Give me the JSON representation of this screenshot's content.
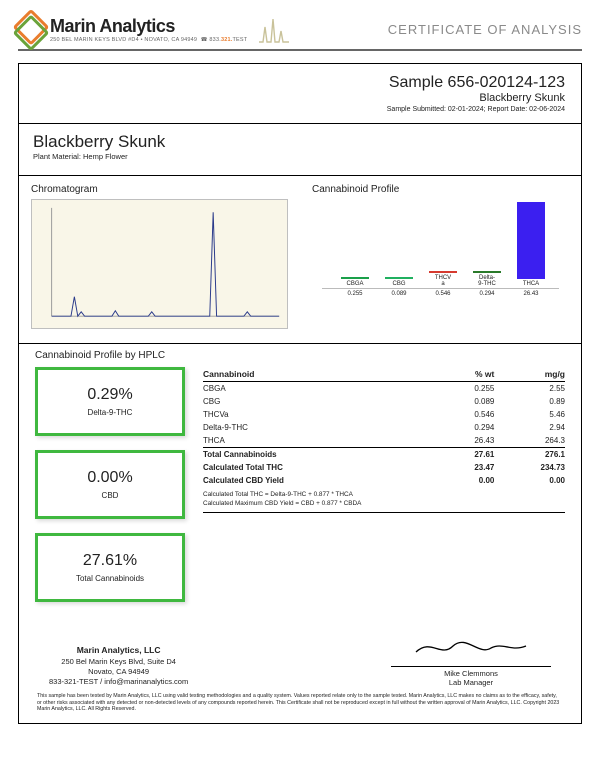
{
  "header": {
    "company": "Marin Analytics",
    "address_line": "250 BEL MARIN KEYS BLVD #D4 • NOVATO, CA 94949",
    "phone_prefix": "833.",
    "phone_accent": "321.",
    "phone_suffix": "TEST",
    "coa_title": "CERTIFICATE OF ANALYSIS",
    "logo_colors": {
      "orange": "#e97c2d",
      "green": "#6aa33a"
    }
  },
  "sample": {
    "id_label": "Sample 656-020124-123",
    "name": "Blackberry Skunk",
    "dates": "Sample Submitted: 02-01-2024;  Report Date: 02-06-2024"
  },
  "product": {
    "name": "Blackberry Skunk",
    "material": "Plant Material: Hemp Flower"
  },
  "chromatogram": {
    "title": "Chromatogram",
    "bg_color": "#f9f6e8",
    "axis_color": "#9a9a9a",
    "trace_color": "#2a3a8a",
    "peaks": [
      {
        "x": 0.1,
        "h": 0.18
      },
      {
        "x": 0.13,
        "h": 0.04
      },
      {
        "x": 0.28,
        "h": 0.05
      },
      {
        "x": 0.44,
        "h": 0.04
      },
      {
        "x": 0.71,
        "h": 0.96
      },
      {
        "x": 0.86,
        "h": 0.04
      }
    ],
    "width_ratio": 0.015
  },
  "profile_chart": {
    "title": "Cannabinoid Profile",
    "max": 30,
    "bars": [
      {
        "label": "CBGA",
        "value": 0.255,
        "color": "#1aa04a"
      },
      {
        "label": "CBG",
        "value": 0.089,
        "color": "#20b060"
      },
      {
        "label": "THCVa",
        "value": 0.546,
        "color": "#d63a2f"
      },
      {
        "label": "Delta-9-THC",
        "value": 0.294,
        "color": "#2a7a2a"
      },
      {
        "label": "THCA",
        "value": 26.43,
        "color": "#3b1ff0"
      }
    ]
  },
  "hplc": {
    "title": "Cannabinoid Profile by HPLC",
    "boxes": [
      {
        "value": "0.29%",
        "label": "Delta-9-THC"
      },
      {
        "value": "0.00%",
        "label": "CBD"
      },
      {
        "value": "27.61%",
        "label": "Total Cannabinoids"
      }
    ],
    "box_border": "#3fb83f",
    "table": {
      "columns": [
        "Cannabinoid",
        "% wt",
        "mg/g"
      ],
      "rows": [
        [
          "CBGA",
          "0.255",
          "2.55"
        ],
        [
          "CBG",
          "0.089",
          "0.89"
        ],
        [
          "THCVa",
          "0.546",
          "5.46"
        ],
        [
          "Delta-9-THC",
          "0.294",
          "2.94"
        ],
        [
          "THCA",
          "26.43",
          "264.3"
        ]
      ],
      "totals": [
        [
          "Total Cannabinoids",
          "27.61",
          "276.1"
        ],
        [
          "Calculated Total THC",
          "23.47",
          "234.73"
        ],
        [
          "Calculated CBD Yield",
          "0.00",
          "0.00"
        ]
      ],
      "notes": [
        "Calculated Total THC = Delta-9-THC + 0.877 * THCA",
        "Calculated Maximum CBD Yield = CBD + 0.877 * CBDA"
      ]
    }
  },
  "footer": {
    "company": "Marin Analytics, LLC",
    "line2": "250 Bel Marin Keys Blvd, Suite D4",
    "line3": "Novato, CA 94949",
    "line4": "833-321-TEST / info@marinanalytics.com",
    "signer": "Mike Clemmons",
    "title": "Lab Manager"
  },
  "disclaimer": "This sample has been tested by Marin Analytics, LLC using valid testing methodologies and a quality system. Values reported relate only to the sample tested. Marin Analytics, LLC makes no claims as to the efficacy, safety, or other risks associated with any detected or non-detected levels of any compounds reported herein. This Certificate shall not be reproduced except in full without the written approval of Marin Analytics, LLC.    Copyright 2023 Marin Analytics, LLC. All Rights Reserved."
}
